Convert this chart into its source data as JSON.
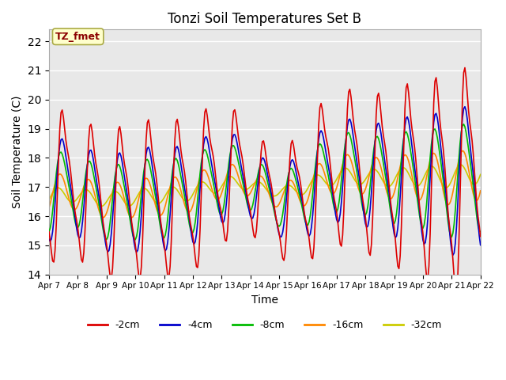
{
  "title": "Tonzi Soil Temperatures Set B",
  "xlabel": "Time",
  "ylabel": "Soil Temperature (C)",
  "ylim": [
    14.0,
    22.4
  ],
  "yticks": [
    14.0,
    15.0,
    16.0,
    17.0,
    18.0,
    19.0,
    20.0,
    21.0,
    22.0
  ],
  "x_labels": [
    "Apr 7",
    "Apr 8",
    "Apr 9",
    "Apr 10",
    "Apr 11",
    "Apr 12",
    "Apr 13",
    "Apr 14",
    "Apr 15",
    "Apr 16",
    "Apr 17",
    "Apr 18",
    "Apr 19",
    "Apr 20",
    "Apr 21",
    "Apr 22"
  ],
  "legend_labels": [
    "-2cm",
    "-4cm",
    "-8cm",
    "-16cm",
    "-32cm"
  ],
  "legend_colors": [
    "#dd0000",
    "#0000cc",
    "#00bb00",
    "#ff8800",
    "#cccc00"
  ],
  "annotation_text": "TZ_fmet",
  "annotation_bg": "#ffffcc",
  "annotation_border": "#aaaa44",
  "bg_color": "#e8e8e8",
  "fig_bg": "#ffffff",
  "line_width": 1.2
}
